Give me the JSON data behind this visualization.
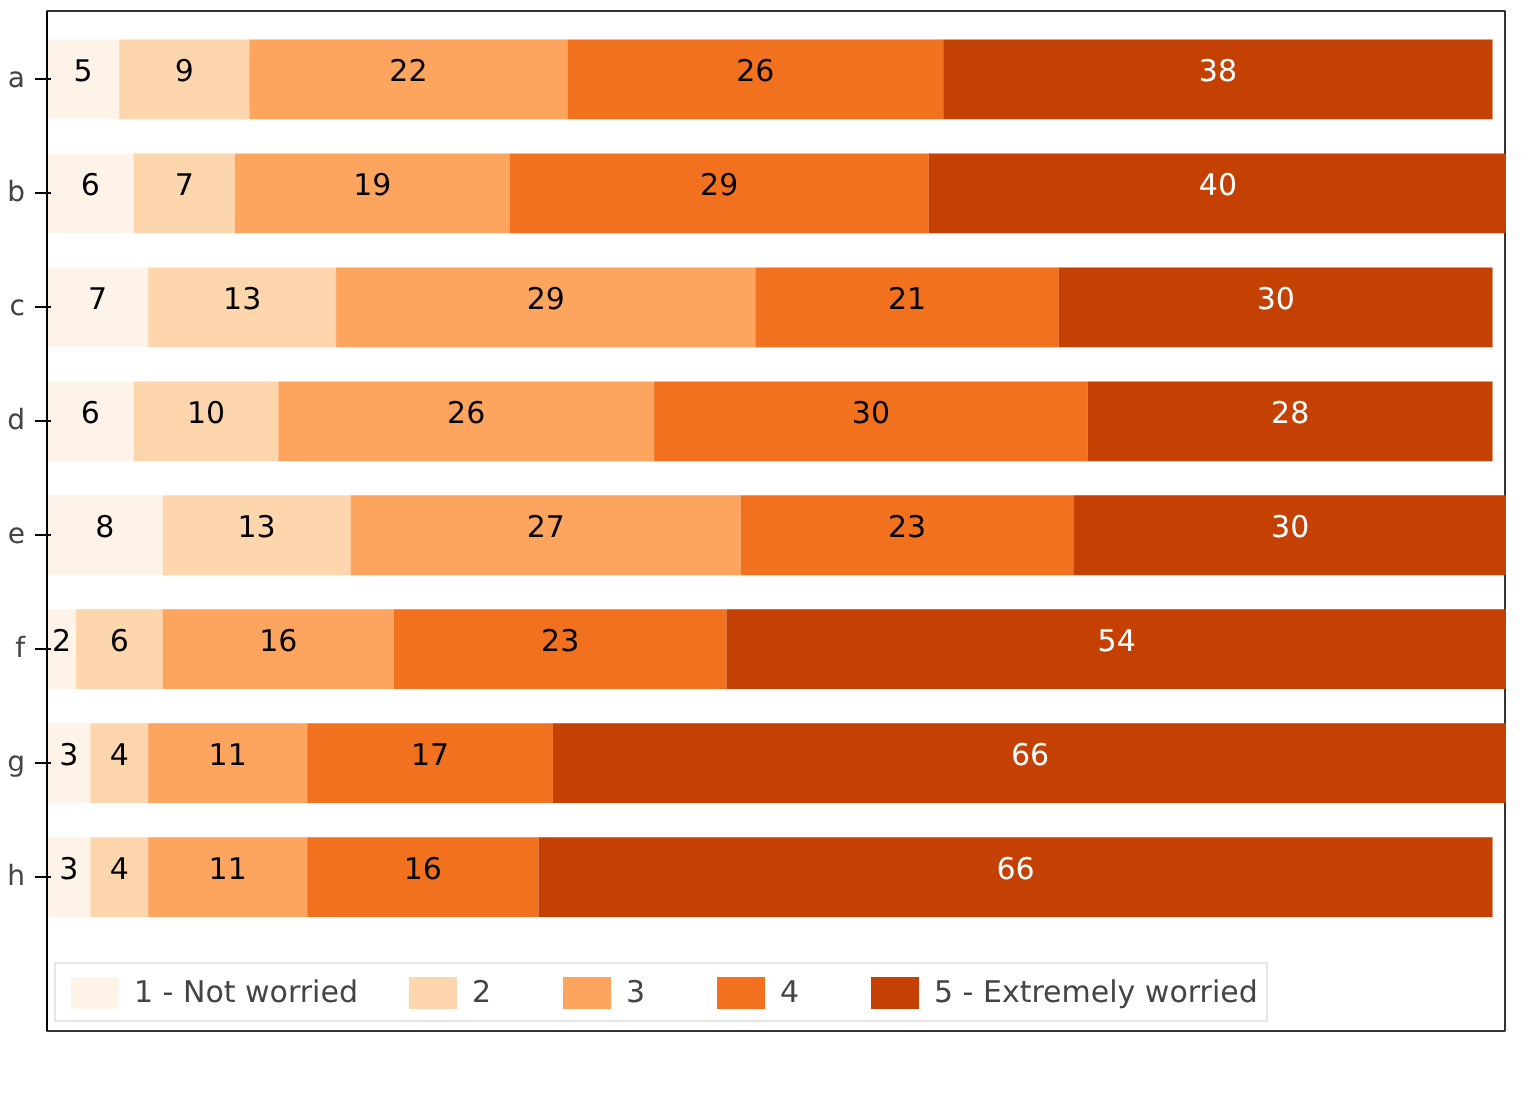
{
  "chart_data": {
    "type": "bar",
    "orientation": "horizontal",
    "stacked": true,
    "data_labels": true,
    "legend": "bottom",
    "grid": false,
    "categories": [
      "a",
      "b",
      "c",
      "d",
      "e",
      "f",
      "g",
      "h"
    ],
    "series": [
      {
        "name": "1 - Not worried",
        "color": "#fef3e8",
        "values": [
          5,
          6,
          7,
          6,
          8,
          2,
          3,
          3
        ]
      },
      {
        "name": "2",
        "color": "#fdd6ae",
        "values": [
          9,
          7,
          13,
          10,
          13,
          6,
          4,
          4
        ]
      },
      {
        "name": "3",
        "color": "#fda45f",
        "values": [
          22,
          19,
          29,
          26,
          27,
          16,
          11,
          11
        ]
      },
      {
        "name": "4",
        "color": "#f2711e",
        "values": [
          26,
          29,
          21,
          30,
          23,
          23,
          17,
          16
        ]
      },
      {
        "name": "5 - Extremely worried",
        "color": "#c44103",
        "values": [
          38,
          40,
          30,
          28,
          30,
          54,
          66,
          66
        ]
      }
    ]
  }
}
